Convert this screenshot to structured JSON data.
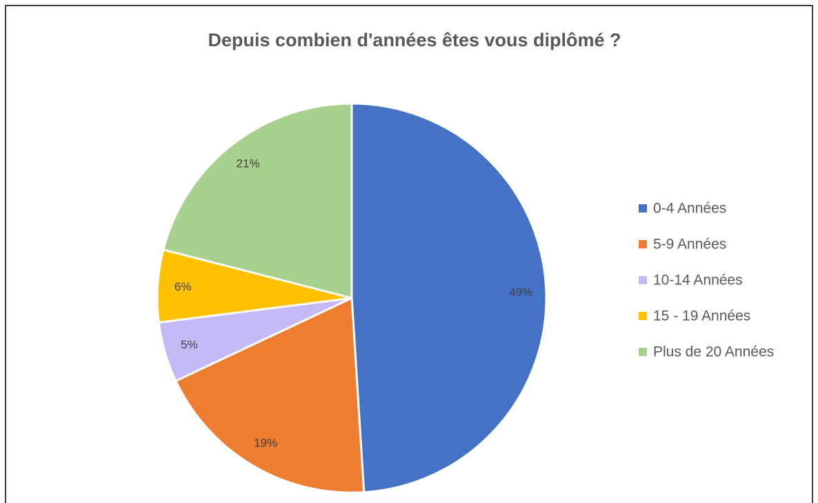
{
  "chart_data": {
    "type": "pie",
    "title": "Depuis combien d'années êtes vous diplômé ?",
    "categories": [
      "0-4 Années",
      "5-9 Années",
      "10-14 Années",
      "15 - 19 Années",
      "Plus de 20 Années"
    ],
    "values": [
      49,
      19,
      5,
      6,
      21
    ],
    "value_labels": [
      "49%",
      "19%",
      "5%",
      "6%",
      "21%"
    ],
    "colors": [
      "#4472c4",
      "#ed7d31",
      "#c5b9f5",
      "#ffc000",
      "#a9d18e"
    ],
    "legend": "right"
  }
}
